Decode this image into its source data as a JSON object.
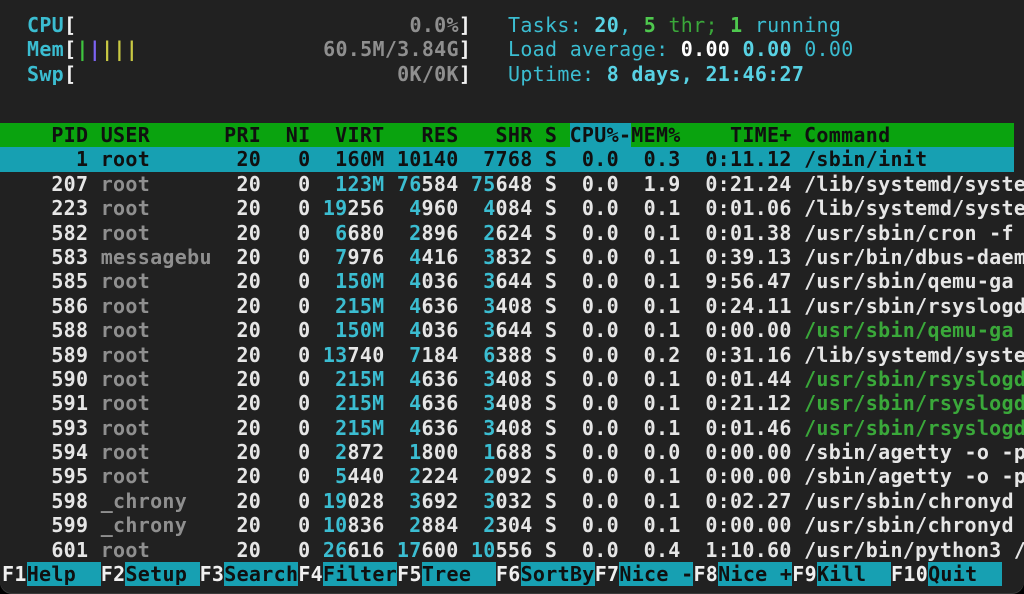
{
  "colors": {
    "background": "#212121",
    "header_bg": "#0aa30f",
    "selection_bg": "#17a0b2",
    "cyan": "#3bbdd1",
    "cyan_bright": "#58d2e4",
    "green": "#3aa83a",
    "green_bright": "#4ec84e",
    "white": "#e6e6e6",
    "gray": "#8f8f8f",
    "bar_green": "#3fc43f",
    "bar_violet": "#7d63f2",
    "bar_yellow": "#c9c943"
  },
  "meters": [
    {
      "id": "cpu",
      "label": "CPU",
      "value": "0.0%",
      "bars": []
    },
    {
      "id": "mem",
      "label": "Mem",
      "value": "60.5M/3.84G",
      "bars": [
        "bar_green",
        "bar_violet",
        "bar_yellow",
        "bar_yellow",
        "bar_yellow"
      ]
    },
    {
      "id": "swp",
      "label": "Swp",
      "value": "0K/0K",
      "bars": []
    }
  ],
  "summary_lines": [
    {
      "id": "tasks-summary",
      "segments": [
        {
          "text": "Tasks: ",
          "style": "cyan"
        },
        {
          "text": "20",
          "style": "cyan bold"
        },
        {
          "text": ", ",
          "style": "cyan"
        },
        {
          "text": "5",
          "style": "green bold"
        },
        {
          "text": " thr; ",
          "style": "green"
        },
        {
          "text": "1",
          "style": "green bold"
        },
        {
          "text": " running",
          "style": "cyan"
        }
      ]
    },
    {
      "id": "load-average",
      "segments": [
        {
          "text": "Load average: ",
          "style": "cyan"
        },
        {
          "text": "0.00",
          "style": "white bold"
        },
        {
          "text": " ",
          "style": "cyan"
        },
        {
          "text": "0.00",
          "style": "cyan bold"
        },
        {
          "text": " ",
          "style": "cyan"
        },
        {
          "text": "0.00",
          "style": "cyan"
        }
      ]
    },
    {
      "id": "uptime",
      "segments": [
        {
          "text": "Uptime: ",
          "style": "cyan"
        },
        {
          "text": "8 days, 21:46:27",
          "style": "cyan bold"
        }
      ]
    }
  ],
  "table": {
    "sort_column": "CPU%",
    "sort_indicator": "-",
    "sort_direction": "descending",
    "columns": [
      {
        "label": "PID",
        "width": 7,
        "align": "right"
      },
      {
        "label": "USER",
        "width": 9,
        "align": "left"
      },
      {
        "label": "PRI",
        "width": 3,
        "align": "right"
      },
      {
        "label": "NI",
        "width": 3,
        "align": "right"
      },
      {
        "label": "VIRT",
        "width": 5,
        "align": "right"
      },
      {
        "label": "RES",
        "width": 5,
        "align": "right"
      },
      {
        "label": "SHR",
        "width": 5,
        "align": "right"
      },
      {
        "label": "S",
        "width": 1,
        "align": "left"
      },
      {
        "label": "CPU%",
        "width": 4,
        "align": "right"
      },
      {
        "label": "MEM%",
        "width": 4,
        "align": "right"
      },
      {
        "label": "TIME+",
        "width": 8,
        "align": "right"
      },
      {
        "label": "Command",
        "width": 18,
        "align": "left"
      }
    ],
    "rows": [
      {
        "pid": "1",
        "user": "root",
        "pri": "20",
        "ni": "0",
        "virt": "160M",
        "res": "10140",
        "shr": "7768",
        "s": "S",
        "cpu": "0.0",
        "mem": "0.3",
        "time": "0:11.12",
        "command": "/sbin/init",
        "command_color": "white",
        "selected": true
      },
      {
        "pid": "207",
        "user": "root",
        "pri": "20",
        "ni": "0",
        "virt": "123M",
        "res": "76584",
        "shr": "75648",
        "s": "S",
        "cpu": "0.0",
        "mem": "1.9",
        "time": "0:21.24",
        "command": "/lib/systemd/syste",
        "command_color": "white",
        "selected": false
      },
      {
        "pid": "223",
        "user": "root",
        "pri": "20",
        "ni": "0",
        "virt": "19256",
        "res": "4960",
        "shr": "4084",
        "s": "S",
        "cpu": "0.0",
        "mem": "0.1",
        "time": "0:01.06",
        "command": "/lib/systemd/syste",
        "command_color": "white",
        "selected": false
      },
      {
        "pid": "582",
        "user": "root",
        "pri": "20",
        "ni": "0",
        "virt": "6680",
        "res": "2896",
        "shr": "2624",
        "s": "S",
        "cpu": "0.0",
        "mem": "0.1",
        "time": "0:01.38",
        "command": "/usr/sbin/cron -f",
        "command_color": "white",
        "selected": false
      },
      {
        "pid": "583",
        "user": "messagebu",
        "pri": "20",
        "ni": "0",
        "virt": "7976",
        "res": "4416",
        "shr": "3832",
        "s": "S",
        "cpu": "0.0",
        "mem": "0.1",
        "time": "0:39.13",
        "command": "/usr/bin/dbus-daem",
        "command_color": "white",
        "selected": false
      },
      {
        "pid": "585",
        "user": "root",
        "pri": "20",
        "ni": "0",
        "virt": "150M",
        "res": "4036",
        "shr": "3644",
        "s": "S",
        "cpu": "0.0",
        "mem": "0.1",
        "time": "9:56.47",
        "command": "/usr/sbin/qemu-ga",
        "command_color": "white",
        "selected": false
      },
      {
        "pid": "586",
        "user": "root",
        "pri": "20",
        "ni": "0",
        "virt": "215M",
        "res": "4636",
        "shr": "3408",
        "s": "S",
        "cpu": "0.0",
        "mem": "0.1",
        "time": "0:24.11",
        "command": "/usr/sbin/rsyslogd",
        "command_color": "white",
        "selected": false
      },
      {
        "pid": "588",
        "user": "root",
        "pri": "20",
        "ni": "0",
        "virt": "150M",
        "res": "4036",
        "shr": "3644",
        "s": "S",
        "cpu": "0.0",
        "mem": "0.1",
        "time": "0:00.00",
        "command": "/usr/sbin/qemu-ga",
        "command_color": "green",
        "selected": false
      },
      {
        "pid": "589",
        "user": "root",
        "pri": "20",
        "ni": "0",
        "virt": "13740",
        "res": "7184",
        "shr": "6388",
        "s": "S",
        "cpu": "0.0",
        "mem": "0.2",
        "time": "0:31.16",
        "command": "/lib/systemd/syste",
        "command_color": "white",
        "selected": false
      },
      {
        "pid": "590",
        "user": "root",
        "pri": "20",
        "ni": "0",
        "virt": "215M",
        "res": "4636",
        "shr": "3408",
        "s": "S",
        "cpu": "0.0",
        "mem": "0.1",
        "time": "0:01.44",
        "command": "/usr/sbin/rsyslogd",
        "command_color": "green",
        "selected": false
      },
      {
        "pid": "591",
        "user": "root",
        "pri": "20",
        "ni": "0",
        "virt": "215M",
        "res": "4636",
        "shr": "3408",
        "s": "S",
        "cpu": "0.0",
        "mem": "0.1",
        "time": "0:21.12",
        "command": "/usr/sbin/rsyslogd",
        "command_color": "green",
        "selected": false
      },
      {
        "pid": "593",
        "user": "root",
        "pri": "20",
        "ni": "0",
        "virt": "215M",
        "res": "4636",
        "shr": "3408",
        "s": "S",
        "cpu": "0.0",
        "mem": "0.1",
        "time": "0:01.46",
        "command": "/usr/sbin/rsyslogd",
        "command_color": "green",
        "selected": false
      },
      {
        "pid": "594",
        "user": "root",
        "pri": "20",
        "ni": "0",
        "virt": "2872",
        "res": "1800",
        "shr": "1688",
        "s": "S",
        "cpu": "0.0",
        "mem": "0.0",
        "time": "0:00.00",
        "command": "/sbin/agetty -o -p",
        "command_color": "white",
        "selected": false
      },
      {
        "pid": "595",
        "user": "root",
        "pri": "20",
        "ni": "0",
        "virt": "5440",
        "res": "2224",
        "shr": "2092",
        "s": "S",
        "cpu": "0.0",
        "mem": "0.1",
        "time": "0:00.00",
        "command": "/sbin/agetty -o -p",
        "command_color": "white",
        "selected": false
      },
      {
        "pid": "598",
        "user": "_chrony",
        "pri": "20",
        "ni": "0",
        "virt": "19028",
        "res": "3692",
        "shr": "3032",
        "s": "S",
        "cpu": "0.0",
        "mem": "0.1",
        "time": "0:02.27",
        "command": "/usr/sbin/chronyd",
        "command_color": "white",
        "selected": false
      },
      {
        "pid": "599",
        "user": "_chrony",
        "pri": "20",
        "ni": "0",
        "virt": "10836",
        "res": "2884",
        "shr": "2304",
        "s": "S",
        "cpu": "0.0",
        "mem": "0.1",
        "time": "0:00.00",
        "command": "/usr/sbin/chronyd",
        "command_color": "white",
        "selected": false
      },
      {
        "pid": "601",
        "user": "root",
        "pri": "20",
        "ni": "0",
        "virt": "26616",
        "res": "17600",
        "shr": "10556",
        "s": "S",
        "cpu": "0.0",
        "mem": "0.4",
        "time": "1:10.60",
        "command": "/usr/bin/python3 /",
        "command_color": "white",
        "selected": false
      }
    ]
  },
  "fkeys": [
    {
      "key": "F1",
      "label": "Help"
    },
    {
      "key": "F2",
      "label": "Setup"
    },
    {
      "key": "F3",
      "label": "Search"
    },
    {
      "key": "F4",
      "label": "Filter"
    },
    {
      "key": "F5",
      "label": "Tree"
    },
    {
      "key": "F6",
      "label": "SortBy"
    },
    {
      "key": "F7",
      "label": "Nice -"
    },
    {
      "key": "F8",
      "label": "Nice +"
    },
    {
      "key": "F9",
      "label": "Kill"
    },
    {
      "key": "F10",
      "label": "Quit"
    }
  ]
}
